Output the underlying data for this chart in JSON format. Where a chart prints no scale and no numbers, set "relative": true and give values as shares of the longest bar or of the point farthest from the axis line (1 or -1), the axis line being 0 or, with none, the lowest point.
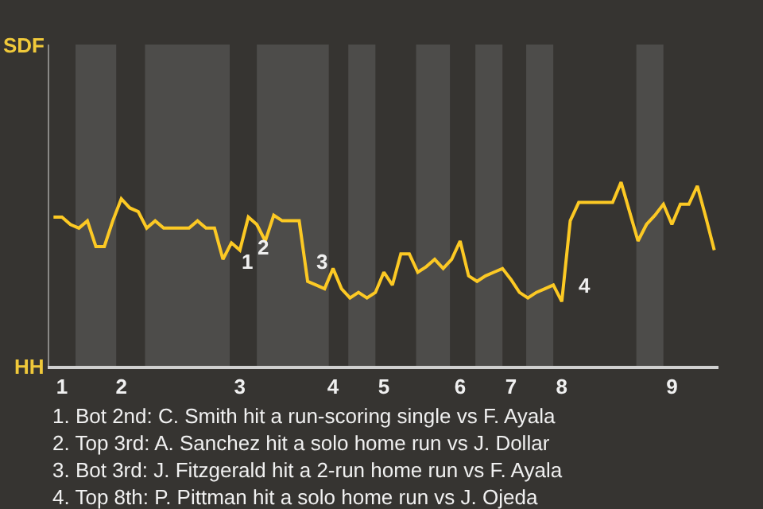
{
  "chart_data": {
    "type": "line",
    "relative": true,
    "categories": [
      null,
      "1",
      null,
      null,
      null,
      null,
      null,
      null,
      "2",
      null,
      null,
      null,
      null,
      null,
      null,
      null,
      null,
      null,
      null,
      null,
      null,
      null,
      "3",
      null,
      null,
      null,
      null,
      null,
      null,
      null,
      null,
      null,
      null,
      "4",
      null,
      null,
      null,
      null,
      null,
      "5",
      null,
      null,
      null,
      null,
      null,
      null,
      null,
      null,
      "6",
      null,
      null,
      null,
      null,
      null,
      "7",
      null,
      null,
      null,
      null,
      null,
      "8",
      null,
      null,
      null,
      null,
      null,
      null,
      null,
      null,
      null,
      null,
      null,
      null,
      "9",
      null,
      null,
      null,
      null,
      null
    ],
    "series": [
      {
        "color": "#fcc924",
        "values": [
          0.81,
          0.81,
          0.77,
          0.75,
          0.79,
          0.65,
          0.65,
          0.79,
          0.91,
          0.86,
          0.84,
          0.75,
          0.79,
          0.75,
          0.75,
          0.75,
          0.75,
          0.79,
          0.75,
          0.75,
          0.58,
          0.67,
          0.63,
          0.81,
          0.77,
          0.68,
          0.82,
          0.79,
          0.79,
          0.79,
          0.46,
          0.44,
          0.42,
          0.53,
          0.42,
          0.37,
          0.4,
          0.37,
          0.4,
          0.51,
          0.44,
          0.61,
          0.61,
          0.51,
          0.54,
          0.58,
          0.53,
          0.58,
          0.68,
          0.49,
          0.46,
          0.49,
          0.51,
          0.53,
          0.47,
          0.4,
          0.37,
          0.4,
          0.42,
          0.44,
          0.35,
          0.79,
          0.89,
          0.89,
          0.89,
          0.89,
          0.89,
          1,
          0.84,
          0.68,
          0.77,
          0.82,
          0.88,
          0.77,
          0.88,
          0.88,
          0.98,
          0.81,
          0.63
        ]
      }
    ],
    "annotations": [
      "SDF",
      "HH",
      "1",
      "2",
      "3",
      "4",
      "1. Bot 2nd: C. Smith hit a run-scoring single vs F. Ayala",
      "2. Top 3rd: A. Sanchez hit a solo home run vs J. Dollar",
      "3. Bot 3rd: J. Fitzgerald hit a 2-run home run vs F. Ayala",
      "4. Top 8th: P. Pittman hit a solo home run vs J. Ojeda"
    ]
  }
}
